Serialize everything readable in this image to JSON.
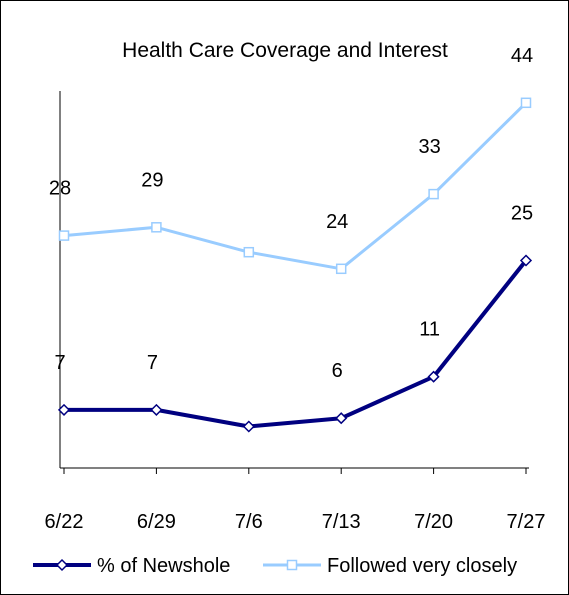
{
  "chart_data": {
    "type": "line",
    "title": "Health Care Coverage and Interest",
    "categories": [
      "6/22",
      "6/29",
      "7/6",
      "7/13",
      "7/20",
      "7/27"
    ],
    "ylim": [
      0,
      50
    ],
    "grid": false,
    "legend_position": "bottom",
    "series": [
      {
        "name": "% of Newshole",
        "values": [
          7,
          7,
          5,
          6,
          11,
          25
        ],
        "labels": [
          "7",
          "7",
          "",
          "6",
          "11",
          "25"
        ],
        "color": "#000080",
        "marker": "diamond"
      },
      {
        "name": "Followed very closely",
        "values": [
          28,
          29,
          26,
          24,
          33,
          44
        ],
        "labels": [
          "28",
          "29",
          "",
          "24",
          "33",
          "44"
        ],
        "color": "#99CCFF",
        "marker": "square"
      }
    ]
  }
}
